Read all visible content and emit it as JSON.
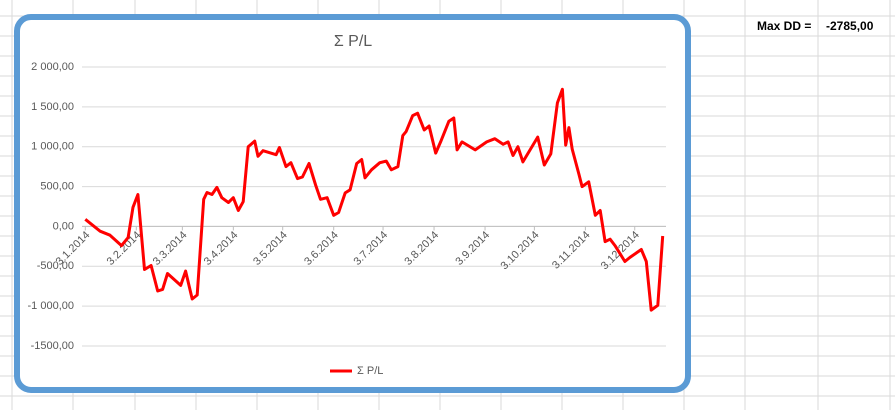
{
  "chart_data": {
    "type": "line",
    "title": "Σ P/L",
    "x": [
      "2014-01-03",
      "2014-01-12",
      "2014-01-18",
      "2014-01-25",
      "2014-01-29",
      "2014-02-01",
      "2014-02-04",
      "2014-02-08",
      "2014-02-12",
      "2014-02-16",
      "2014-02-19",
      "2014-02-22",
      "2014-03-02",
      "2014-03-05",
      "2014-03-09",
      "2014-03-12",
      "2014-03-16",
      "2014-03-18",
      "2014-03-21",
      "2014-03-24",
      "2014-03-27",
      "2014-03-31",
      "2014-04-03",
      "2014-04-06",
      "2014-04-09",
      "2014-04-12",
      "2014-04-16",
      "2014-04-18",
      "2014-04-21",
      "2014-04-29",
      "2014-05-01",
      "2014-05-05",
      "2014-05-08",
      "2014-05-12",
      "2014-05-15",
      "2014-05-19",
      "2014-05-23",
      "2014-05-26",
      "2014-05-30",
      "2014-06-03",
      "2014-06-06",
      "2014-06-10",
      "2014-06-13",
      "2014-06-17",
      "2014-06-20",
      "2014-06-22",
      "2014-06-26",
      "2014-07-01",
      "2014-07-05",
      "2014-07-08",
      "2014-07-12",
      "2014-07-15",
      "2014-07-17",
      "2014-07-21",
      "2014-07-24",
      "2014-07-28",
      "2014-07-31",
      "2014-08-04",
      "2014-08-07",
      "2014-08-12",
      "2014-08-15",
      "2014-08-17",
      "2014-08-20",
      "2014-08-28",
      "2014-09-04",
      "2014-09-09",
      "2014-09-14",
      "2014-09-17",
      "2014-09-20",
      "2014-09-23",
      "2014-09-26",
      "2014-10-05",
      "2014-10-09",
      "2014-10-13",
      "2014-10-17",
      "2014-10-20",
      "2014-10-22",
      "2014-10-24",
      "2014-10-26",
      "2014-10-30",
      "2014-11-01",
      "2014-11-05",
      "2014-11-09",
      "2014-11-12",
      "2014-11-15",
      "2014-11-18",
      "2014-11-21",
      "2014-11-27",
      "2014-11-30",
      "2014-12-07",
      "2014-12-10",
      "2014-12-13",
      "2014-12-17",
      "2014-12-20"
    ],
    "series": [
      {
        "name": "Σ P/L",
        "color": "#ff0000",
        "values": [
          90,
          -60,
          -110,
          -240,
          -140,
          240,
          400,
          -540,
          -490,
          -810,
          -790,
          -590,
          -740,
          -560,
          -910,
          -860,
          340,
          425,
          400,
          490,
          360,
          300,
          360,
          200,
          310,
          1000,
          1070,
          880,
          950,
          900,
          990,
          750,
          800,
          600,
          620,
          790,
          520,
          340,
          360,
          140,
          175,
          420,
          460,
          790,
          840,
          610,
          710,
          800,
          820,
          710,
          750,
          1140,
          1190,
          1390,
          1420,
          1210,
          1260,
          920,
          1060,
          1320,
          1360,
          960,
          1060,
          960,
          1060,
          1100,
          1030,
          1060,
          890,
          1000,
          810,
          1120,
          770,
          910,
          1550,
          1720,
          1020,
          1240,
          970,
          660,
          500,
          560,
          140,
          200,
          -190,
          -160,
          -240,
          -440,
          -390,
          -290,
          -440,
          -1050,
          -990,
          -120
        ]
      }
    ],
    "xlim": [
      "2014-01-01",
      "2014-12-22"
    ],
    "xticks": [
      {
        "value": "2014-01-03",
        "label": "3.1.2014"
      },
      {
        "value": "2014-02-03",
        "label": "3.2.2014"
      },
      {
        "value": "2014-03-03",
        "label": "3.3.2014"
      },
      {
        "value": "2014-04-03",
        "label": "3.4.2014"
      },
      {
        "value": "2014-05-03",
        "label": "3.5.2014"
      },
      {
        "value": "2014-06-03",
        "label": "3.6.2014"
      },
      {
        "value": "2014-07-03",
        "label": "3.7.2014"
      },
      {
        "value": "2014-08-03",
        "label": "3.8.2014"
      },
      {
        "value": "2014-09-03",
        "label": "3.9.2014"
      },
      {
        "value": "2014-10-03",
        "label": "3.10.2014"
      },
      {
        "value": "2014-11-03",
        "label": "3.11.2014"
      },
      {
        "value": "2014-12-03",
        "label": "3.12.2014"
      }
    ],
    "ylim": [
      -1500,
      2000
    ],
    "yticks": [
      {
        "value": -1500,
        "label": "-1500,00"
      },
      {
        "value": -1000,
        "label": "-1 000,00"
      },
      {
        "value": -500,
        "label": "-500,00"
      },
      {
        "value": 0,
        "label": "0,00"
      },
      {
        "value": 500,
        "label": "500,00"
      },
      {
        "value": 1000,
        "label": "1 000,00"
      },
      {
        "value": 1500,
        "label": "1 500,00"
      },
      {
        "value": 2000,
        "label": "2 000,00"
      }
    ],
    "grid": true,
    "legend": "bottom"
  },
  "sheet": {
    "label": "Max DD =",
    "value": "-2785,00"
  }
}
